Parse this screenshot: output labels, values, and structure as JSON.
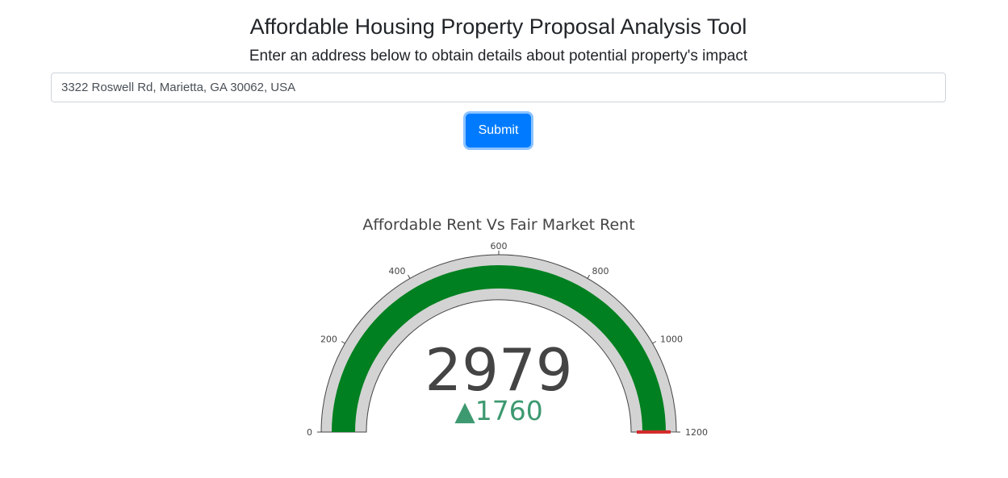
{
  "header": {
    "title": "Affordable Housing Property Proposal Analysis Tool",
    "subtitle": "Enter an address below to obtain details about potential property's impact"
  },
  "form": {
    "address_value": "3322 Roswell Rd, Marietta, GA 30062, USA",
    "submit_label": "Submit"
  },
  "colors": {
    "bar": "#008020",
    "gauge_bg": "#d3d3d3",
    "gauge_border": "#444444",
    "threshold": "#d42a2a",
    "delta_increasing": "#3d9970",
    "text": "#444444"
  },
  "chart_data": {
    "type": "gauge",
    "title": "Affordable Rent Vs Fair Market Rent",
    "range": [
      0,
      1200
    ],
    "tick_values": [
      0,
      200,
      400,
      600,
      800,
      1000,
      1200
    ],
    "tick_labels": [
      "0",
      "200",
      "400",
      "600",
      "800",
      "1000",
      "1200"
    ],
    "value": 2979,
    "value_text": "2979",
    "delta": 1760,
    "delta_text": "1760",
    "delta_direction": "increasing",
    "delta_symbol": "▲",
    "threshold_value": 1200
  }
}
